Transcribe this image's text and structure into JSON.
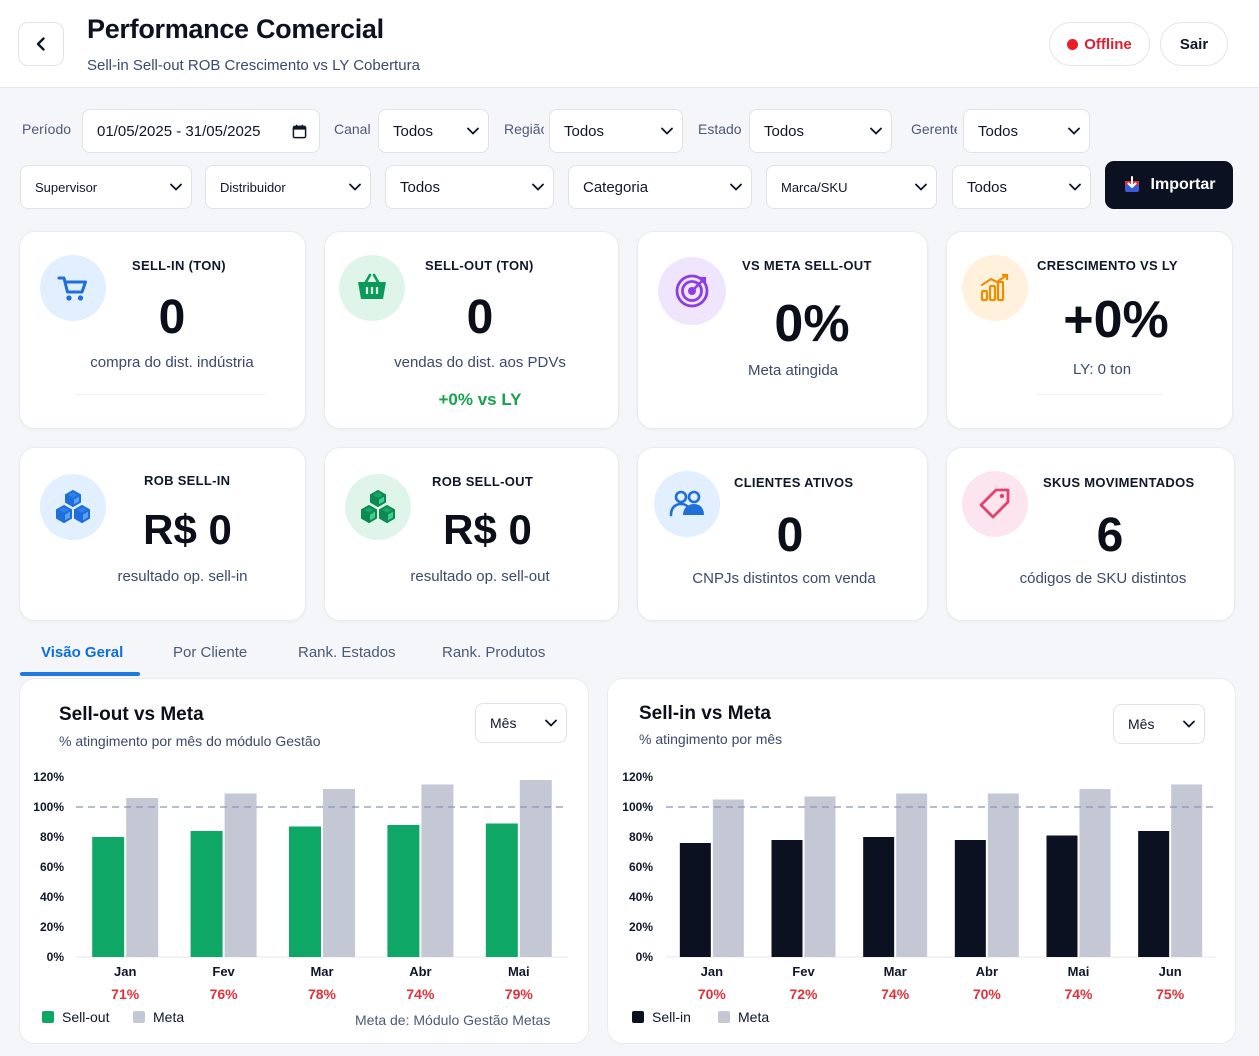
{
  "header": {
    "title": "Performance Comercial",
    "subtitle": "Sell-in Sell-out ROB Crescimento vs LY Cobertura",
    "offline_label": "Offline",
    "exit_label": "Sair"
  },
  "filters": {
    "periodo_label": "Período",
    "periodo_value": "01/05/2025 - 31/05/2025",
    "canal_label": "Canal",
    "canal_value": "Todos",
    "regiao_label": "Região",
    "regiao_value": "Todos",
    "estado_label": "Estado",
    "estado_value": "Todos",
    "gerente_label": "Gerente",
    "gerente_value": "Todos",
    "supervisor_value": "Supervisor",
    "distribuidor_value": "Distribuidor",
    "dist_todos_value": "Todos",
    "categoria_value": "Categoria",
    "marca_value": "Marca/SKU",
    "marca_todos_value": "Todos",
    "import_label": "Importar"
  },
  "kpis": {
    "sell_in": {
      "title": "SELL-IN (TON)",
      "value": "0",
      "sub": "compra do dist. indústria"
    },
    "sell_out": {
      "title": "SELL-OUT (TON)",
      "value": "0",
      "sub": "vendas do dist. aos PDVs",
      "extra": "+0% vs LY"
    },
    "meta": {
      "title": "VS META SELL-OUT",
      "value": "0%",
      "sub": "Meta atingida"
    },
    "crescimento": {
      "title": "CRESCIMENTO VS LY",
      "value": "+0%",
      "sub": "LY: 0 ton"
    },
    "rob_in": {
      "title": "ROB SELL-IN",
      "value": "R$ 0",
      "sub": "resultado op. sell-in"
    },
    "rob_out": {
      "title": "ROB SELL-OUT",
      "value": "R$ 0",
      "sub": "resultado op. sell-out"
    },
    "clientes": {
      "title": "CLIENTES ATIVOS",
      "value": "0",
      "sub": "CNPJs distintos com venda"
    },
    "skus": {
      "title": "SKUS MOVIMENTADOS",
      "value": "6",
      "sub": "códigos de SKU distintos"
    }
  },
  "tabs": [
    "Visão Geral",
    "Por Cliente",
    "Rank. Estados",
    "Rank. Produtos"
  ],
  "charts": {
    "sellout": {
      "title": "Sell-out vs Meta",
      "subtitle": "% atingimento por mês do módulo Gestão",
      "period_select": "Mês",
      "footnote": "Meta de: Módulo Gestão Metas"
    },
    "sellin": {
      "title": "Sell-in vs Meta",
      "subtitle": "% atingimento por mês",
      "period_select": "Mês"
    }
  },
  "chart_data": [
    {
      "type": "bar",
      "title": "Sell-out vs Meta",
      "categories": [
        "Jan",
        "Fev",
        "Mar",
        "Abr",
        "Mai"
      ],
      "series": [
        {
          "name": "Sell-out",
          "values": [
            80,
            84,
            87,
            88,
            89
          ],
          "color": "#0ea765"
        },
        {
          "name": "Meta",
          "values": [
            106,
            109,
            112,
            115,
            118
          ],
          "color": "#c4c7d4"
        }
      ],
      "attainment_labels": [
        "71%",
        "76%",
        "78%",
        "74%",
        "79%"
      ],
      "reference_line": 100,
      "ylim": [
        0,
        120
      ],
      "yticks": [
        "0%",
        "20%",
        "40%",
        "60%",
        "80%",
        "100%",
        "120%"
      ],
      "legend": "bottom-left"
    },
    {
      "type": "bar",
      "title": "Sell-in vs Meta",
      "categories": [
        "Jan",
        "Fev",
        "Mar",
        "Abr",
        "Mai",
        "Jun"
      ],
      "series": [
        {
          "name": "Sell-in",
          "values": [
            76,
            78,
            80,
            78,
            81,
            84
          ],
          "color": "#0b1120"
        },
        {
          "name": "Meta",
          "values": [
            105,
            107,
            109,
            109,
            112,
            115
          ],
          "color": "#c4c7d4"
        }
      ],
      "attainment_labels": [
        "70%",
        "72%",
        "74%",
        "70%",
        "74%",
        "75%"
      ],
      "reference_line": 100,
      "ylim": [
        0,
        120
      ],
      "yticks": [
        "0%",
        "20%",
        "40%",
        "60%",
        "80%",
        "100%",
        "120%"
      ],
      "legend": "bottom-left"
    }
  ]
}
